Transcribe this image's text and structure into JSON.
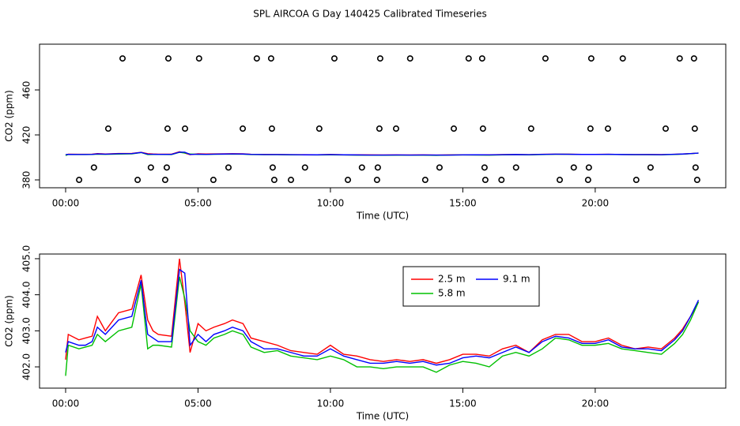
{
  "title": "SPL AIRCOA G  Day 140425  Calibrated Timeseries",
  "chart_data": [
    {
      "type": "scatter",
      "xlabel": "Time (UTC)",
      "ylabel": "CO2 (ppm)",
      "xlim": [
        -0.985,
        24.93
      ],
      "ylim": [
        373,
        500.7
      ],
      "xticks": [
        {
          "value": 0,
          "label": "00:00"
        },
        {
          "value": 5,
          "label": "05:00"
        },
        {
          "value": 10,
          "label": "10:00"
        },
        {
          "value": 15,
          "label": "15:00"
        },
        {
          "value": 20,
          "label": "20:00"
        }
      ],
      "yticks": [
        380,
        420,
        460
      ],
      "series": [
        {
          "color": "#000000",
          "x": [
            2.15,
            3.88,
            5.04,
            7.22,
            7.76,
            10.15,
            11.88,
            13.01,
            15.22,
            15.73,
            18.12,
            19.85,
            21.04,
            23.19,
            23.73,
            1.61,
            3.85,
            4.51,
            6.69,
            7.79,
            9.58,
            11.85,
            12.48,
            14.66,
            15.76,
            17.58,
            19.82,
            20.48,
            22.66,
            23.76,
            1.07,
            3.22,
            3.82,
            6.15,
            7.82,
            9.04,
            11.19,
            11.79,
            14.12,
            15.82,
            17.01,
            19.19,
            19.76,
            22.09,
            23.79,
            0.51,
            2.72,
            3.76,
            5.58,
            7.88,
            8.51,
            10.66,
            11.76,
            13.58,
            15.85,
            16.46,
            18.66,
            19.73,
            21.55,
            23.85
          ],
          "values": [
            488,
            488,
            488,
            488,
            488,
            488,
            488,
            488,
            488,
            488,
            488,
            488,
            488,
            488,
            488,
            425.6,
            425.6,
            425.6,
            425.6,
            425.6,
            425.6,
            425.6,
            425.6,
            425.6,
            425.6,
            425.6,
            425.6,
            425.6,
            425.6,
            425.6,
            391,
            391,
            391,
            391,
            391,
            391,
            391,
            391,
            391,
            391,
            391,
            391,
            391,
            391,
            391,
            380,
            380,
            380,
            380,
            380,
            380,
            380,
            380,
            380,
            380,
            380,
            380,
            380,
            380,
            380
          ]
        }
      ]
    },
    {
      "type": "line",
      "xlabel": "Time (UTC)",
      "ylabel": "CO2 (ppm)",
      "xlim": [
        -0.985,
        24.93
      ],
      "ylim": [
        401.41,
        405.13
      ],
      "xticks": [
        {
          "value": 0,
          "label": "00:00"
        },
        {
          "value": 5,
          "label": "05:00"
        },
        {
          "value": 10,
          "label": "10:00"
        },
        {
          "value": 15,
          "label": "15:00"
        },
        {
          "value": 20,
          "label": "20:00"
        }
      ],
      "yticks": [
        {
          "value": 402,
          "label": "402.0"
        },
        {
          "value": 403,
          "label": "403.0"
        },
        {
          "value": 404,
          "label": "404.0"
        },
        {
          "value": 405,
          "label": "405.0"
        }
      ],
      "legend": "top",
      "x": [
        0,
        0.1,
        0.5,
        0.75,
        1,
        1.2,
        1.5,
        2,
        2.5,
        2.85,
        3.1,
        3.3,
        3.5,
        4,
        4.3,
        4.5,
        4.7,
        5,
        5.3,
        5.6,
        6,
        6.3,
        6.7,
        7,
        7.5,
        8,
        8.5,
        9,
        9.5,
        10,
        10.5,
        11,
        11.5,
        12,
        12.5,
        13,
        13.5,
        14,
        14.5,
        15,
        15.5,
        16,
        16.5,
        17,
        17.5,
        18,
        18.5,
        19,
        19.5,
        20,
        20.5,
        21,
        21.5,
        22,
        22.5,
        23,
        23.3,
        23.6,
        23.9
      ],
      "series": [
        {
          "name": "2.5 m",
          "color": "#ff0000",
          "values": [
            402.2,
            402.9,
            402.75,
            402.8,
            402.85,
            403.4,
            403.0,
            403.5,
            403.6,
            404.55,
            403.3,
            403.0,
            402.9,
            402.85,
            405.0,
            403.8,
            402.4,
            403.2,
            403.0,
            403.1,
            403.2,
            403.3,
            403.2,
            402.8,
            402.7,
            402.6,
            402.45,
            402.4,
            402.35,
            402.6,
            402.35,
            402.3,
            402.2,
            402.15,
            402.2,
            402.15,
            402.2,
            402.1,
            402.2,
            402.35,
            402.35,
            402.3,
            402.5,
            402.6,
            402.4,
            402.75,
            402.9,
            402.9,
            402.7,
            402.7,
            402.8,
            402.6,
            402.5,
            402.55,
            402.5,
            402.8,
            403.05,
            403.4,
            403.8
          ]
        },
        {
          "name": "5.8 m",
          "color": "#00c000",
          "values": [
            401.75,
            402.6,
            402.5,
            402.55,
            402.6,
            402.9,
            402.7,
            403.0,
            403.1,
            404.3,
            402.5,
            402.6,
            402.6,
            402.55,
            404.5,
            403.9,
            403.0,
            402.7,
            402.6,
            402.8,
            402.9,
            403.0,
            402.9,
            402.55,
            402.4,
            402.45,
            402.3,
            402.25,
            402.2,
            402.3,
            402.2,
            402.0,
            402.0,
            401.95,
            402.0,
            402.0,
            402.0,
            401.85,
            402.05,
            402.15,
            402.1,
            402.0,
            402.3,
            402.4,
            402.3,
            402.5,
            402.8,
            402.75,
            402.6,
            402.6,
            402.65,
            402.5,
            402.45,
            402.4,
            402.35,
            402.65,
            402.9,
            403.3,
            403.8
          ]
        },
        {
          "name": "9.1 m",
          "color": "#0000ff",
          "values": [
            402.4,
            402.7,
            402.6,
            402.6,
            402.7,
            403.1,
            402.9,
            403.3,
            403.4,
            404.4,
            402.9,
            402.8,
            402.7,
            402.7,
            404.7,
            404.6,
            402.6,
            402.9,
            402.7,
            402.9,
            403.0,
            403.1,
            403.0,
            402.7,
            402.5,
            402.5,
            402.4,
            402.3,
            402.3,
            402.5,
            402.3,
            402.2,
            402.1,
            402.1,
            402.15,
            402.1,
            402.15,
            402.05,
            402.1,
            402.25,
            402.3,
            402.25,
            402.4,
            402.55,
            402.4,
            402.7,
            402.85,
            402.8,
            402.65,
            402.65,
            402.75,
            402.55,
            402.5,
            402.5,
            402.45,
            402.75,
            403.0,
            403.4,
            403.85
          ]
        }
      ]
    }
  ]
}
